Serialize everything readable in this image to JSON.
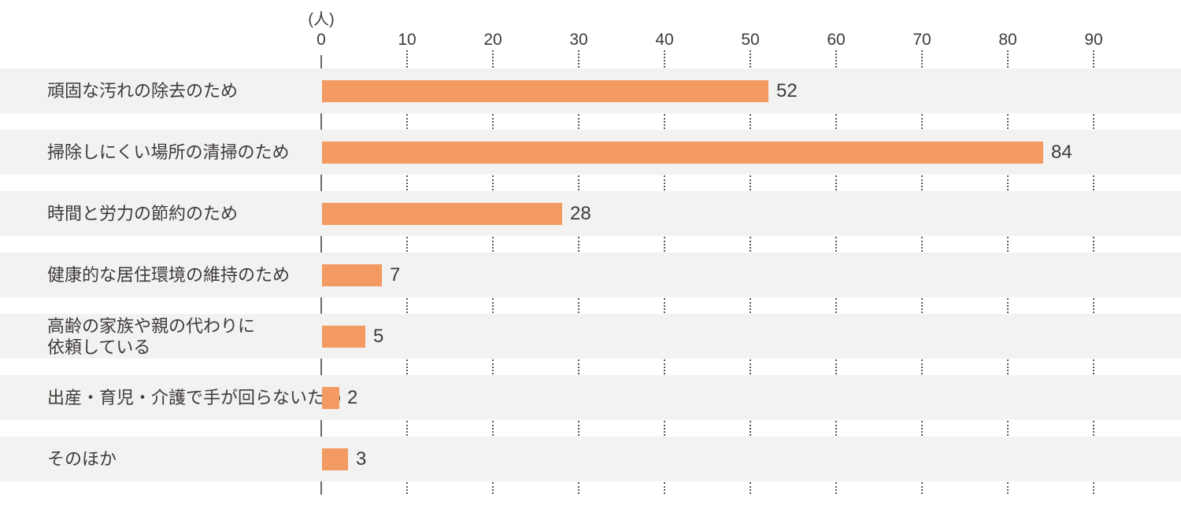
{
  "chart_data": {
    "type": "bar",
    "orientation": "horizontal",
    "title": "",
    "unit_label": "(人)",
    "xlabel": "(人)",
    "ylabel": "",
    "xlim": [
      0,
      90
    ],
    "x_ticks": [
      0,
      10,
      20,
      30,
      40,
      50,
      60,
      70,
      80,
      90
    ],
    "grid": "dotted vertical tick marks shown in gaps between row stripes",
    "legend": "none",
    "categories": [
      "頑固な汚れの除去のため",
      "掃除しにくい場所の清掃のため",
      "時間と労力の節約のため",
      "健康的な居住環境の維持のため",
      "高齢の家族や親の代わりに\n依頼している",
      "出産・育児・介護で手が回らないため",
      "そのほか"
    ],
    "values": [
      52,
      84,
      28,
      7,
      5,
      2,
      3
    ],
    "colors": {
      "bar": "#F29A61",
      "row_stripe": "#F2F2F1",
      "axis_line": "#6E6A69",
      "grid_dots": "#595757",
      "text": "#3E3A39"
    }
  }
}
